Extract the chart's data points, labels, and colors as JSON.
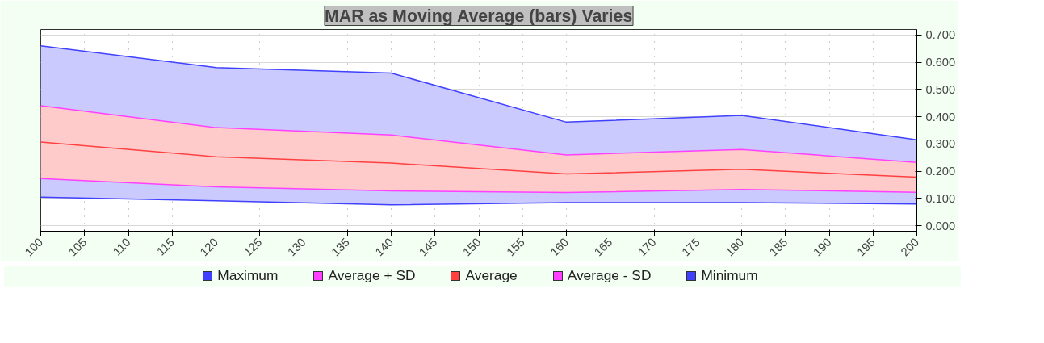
{
  "chart_data": {
    "type": "line",
    "title": "MAR as Moving Average (bars) Varies",
    "x": [
      100,
      120,
      140,
      160,
      180,
      200
    ],
    "series": [
      {
        "name": "Maximum",
        "color": "#4040ff",
        "values": [
          0.66,
          0.58,
          0.56,
          0.38,
          0.405,
          0.315
        ],
        "lower": [
          0.105,
          0.092,
          0.077,
          0.085,
          0.085,
          0.08
        ],
        "upper": [
          0.66,
          0.58,
          0.56,
          0.38,
          0.405,
          0.315
        ]
      },
      {
        "name": "Average + SD",
        "color": "#ff40ff",
        "values": [
          0.44,
          0.36,
          0.333,
          0.26,
          0.28,
          0.232
        ]
      },
      {
        "name": "Average",
        "color": "#ff4040",
        "values": [
          0.307,
          0.253,
          0.23,
          0.19,
          0.207,
          0.178
        ],
        "lower": [
          0.173,
          0.143,
          0.128,
          0.122,
          0.133,
          0.123
        ],
        "upper": [
          0.44,
          0.36,
          0.333,
          0.26,
          0.28,
          0.232
        ]
      },
      {
        "name": "Average - SD",
        "color": "#ff40ff",
        "values": [
          0.173,
          0.143,
          0.128,
          0.122,
          0.133,
          0.123
        ]
      },
      {
        "name": "Minimum",
        "color": "#4040ff",
        "values": [
          0.105,
          0.092,
          0.077,
          0.085,
          0.085,
          0.08
        ]
      }
    ],
    "xlim": [
      100,
      200
    ],
    "xticks": [
      100,
      105,
      110,
      115,
      120,
      125,
      130,
      135,
      140,
      145,
      150,
      155,
      160,
      165,
      170,
      175,
      180,
      185,
      190,
      195,
      200
    ],
    "ylim": [
      -0.02,
      0.72
    ],
    "yticks": [
      {
        "value": 0,
        "label": "0.000"
      },
      {
        "value": 0.1,
        "label": "0.100"
      },
      {
        "value": 0.2,
        "label": "0.200"
      },
      {
        "value": 0.3,
        "label": "0.300"
      },
      {
        "value": 0.4,
        "label": "0.400"
      },
      {
        "value": 0.5,
        "label": "0.500"
      },
      {
        "value": 0.6,
        "label": "0.600"
      },
      {
        "value": 0.7,
        "label": "0.700"
      }
    ],
    "grid": true,
    "legend": "bottom",
    "marker": "none",
    "line_style": "solid"
  }
}
